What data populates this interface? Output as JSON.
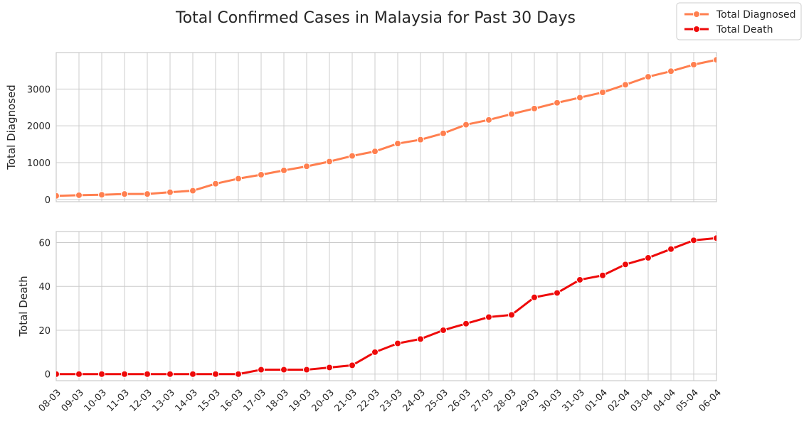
{
  "chart_data": {
    "type": "line",
    "title": "Total Confirmed Cases in Malaysia for Past 30 Days",
    "x": [
      "08-03",
      "09-03",
      "10-03",
      "11-03",
      "12-03",
      "13-03",
      "14-03",
      "15-03",
      "16-03",
      "17-03",
      "18-03",
      "19-03",
      "20-03",
      "21-03",
      "22-03",
      "23-03",
      "24-03",
      "25-03",
      "26-03",
      "27-03",
      "28-03",
      "29-03",
      "30-03",
      "31-03",
      "01-04",
      "02-04",
      "03-04",
      "04-04",
      "05-04",
      "06-04"
    ],
    "legend": {
      "placement": "top-right"
    },
    "grid": true,
    "panels": [
      {
        "ylabel": "Total Diagnosed",
        "ylim": [
          -60,
          3990
        ],
        "yticks": [
          0,
          1000,
          2000,
          3000
        ],
        "series": [
          {
            "name": "Total Diagnosed",
            "color": "#ff7f4f",
            "values": [
              99,
              117,
              129,
              149,
              149,
              197,
              238,
              428,
              566,
              673,
              790,
              900,
              1030,
              1183,
              1306,
              1518,
              1624,
              1796,
              2031,
              2161,
              2320,
              2470,
              2626,
              2766,
              2908,
              3116,
              3333,
              3483,
              3662,
              3793
            ]
          }
        ]
      },
      {
        "ylabel": "Total Death",
        "ylim": [
          -3,
          65
        ],
        "yticks": [
          0,
          20,
          40,
          60
        ],
        "series": [
          {
            "name": "Total Death",
            "color": "#ee0a0a",
            "values": [
              0,
              0,
              0,
              0,
              0,
              0,
              0,
              0,
              0,
              2,
              2,
              2,
              3,
              4,
              10,
              14,
              16,
              20,
              23,
              26,
              27,
              35,
              37,
              43,
              45,
              50,
              53,
              57,
              61,
              62
            ]
          }
        ]
      }
    ]
  }
}
